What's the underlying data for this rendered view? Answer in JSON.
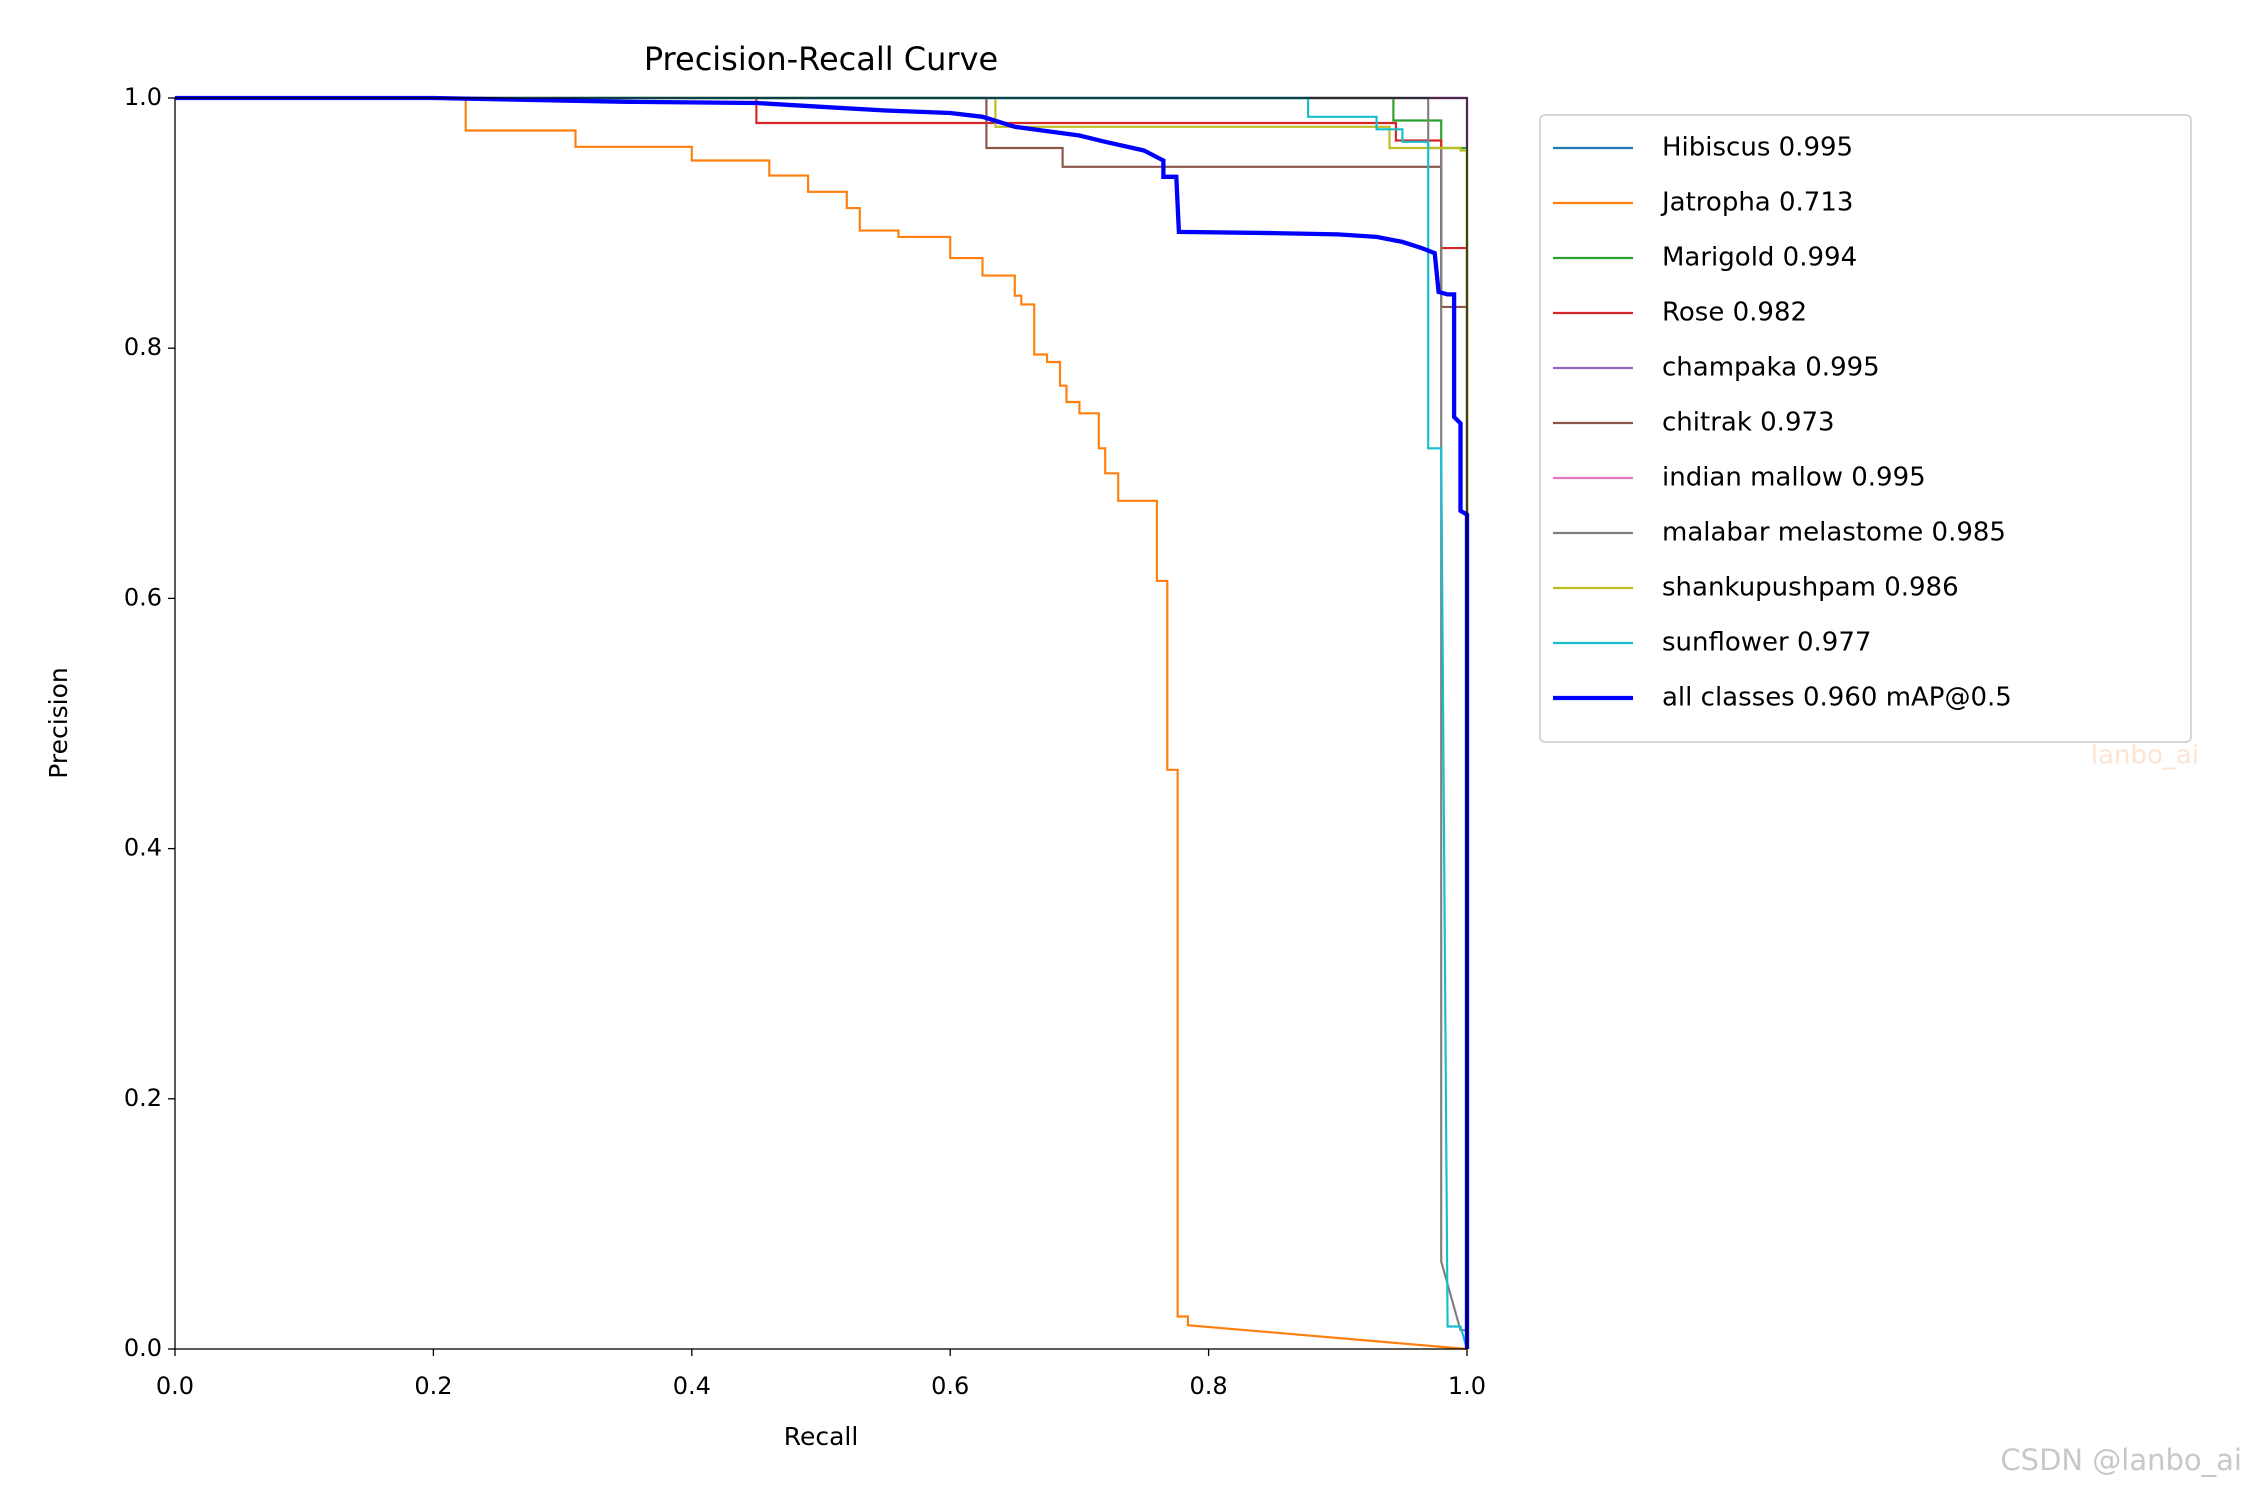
{
  "chart_data": {
    "type": "line",
    "title": "Precision-Recall Curve",
    "xlabel": "Recall",
    "ylabel": "Precision",
    "xlim": [
      0,
      1
    ],
    "ylim": [
      0,
      1
    ],
    "xticks": [
      {
        "value": 0,
        "label": "0.0"
      },
      0.2,
      0.4,
      0.6,
      0.8,
      {
        "value": 1,
        "label": "1.0"
      }
    ],
    "yticks": [
      {
        "value": 0,
        "label": "0.0"
      },
      0.2,
      0.4,
      0.6,
      0.8,
      {
        "value": 1,
        "label": "1.0"
      }
    ],
    "legend": "outside upper right",
    "annotations": [
      "lanbo_ai",
      "CSDN @lanbo_ai"
    ],
    "series": [
      {
        "name": "Hibiscus 0.995",
        "color": "#1f77b4",
        "width": 1.5,
        "x": [
          0,
          1,
          1
        ],
        "values": [
          1,
          1,
          0
        ]
      },
      {
        "name": "Jatropha 0.713",
        "color": "#ff7f0e",
        "width": 1.5,
        "x": [
          0,
          0.225,
          0.225,
          0.31,
          0.31,
          0.4,
          0.4,
          0.46,
          0.46,
          0.49,
          0.49,
          0.52,
          0.52,
          0.53,
          0.53,
          0.56,
          0.56,
          0.6,
          0.6,
          0.625,
          0.625,
          0.65,
          0.65,
          0.655,
          0.655,
          0.665,
          0.665,
          0.675,
          0.675,
          0.685,
          0.685,
          0.69,
          0.69,
          0.7,
          0.7,
          0.715,
          0.715,
          0.72,
          0.72,
          0.73,
          0.73,
          0.76,
          0.76,
          0.768,
          0.768,
          0.776,
          0.776,
          0.784,
          0.784,
          1
        ],
        "values": [
          1,
          1,
          0.974,
          0.974,
          0.961,
          0.961,
          0.95,
          0.95,
          0.938,
          0.938,
          0.925,
          0.925,
          0.912,
          0.912,
          0.894,
          0.894,
          0.889,
          0.889,
          0.872,
          0.872,
          0.858,
          0.858,
          0.842,
          0.842,
          0.835,
          0.835,
          0.795,
          0.795,
          0.789,
          0.789,
          0.77,
          0.77,
          0.757,
          0.757,
          0.748,
          0.748,
          0.72,
          0.72,
          0.7,
          0.7,
          0.678,
          0.678,
          0.614,
          0.614,
          0.463,
          0.463,
          0.026,
          0.026,
          0.019,
          0
        ]
      },
      {
        "name": "Marigold 0.994",
        "color": "#2ca02c",
        "width": 1.5,
        "x": [
          0,
          0.943,
          0.943,
          0.98,
          0.98,
          1,
          1
        ],
        "values": [
          1,
          1,
          0.982,
          0.982,
          0.96,
          0.96,
          0
        ]
      },
      {
        "name": "Rose 0.982",
        "color": "#d62728",
        "width": 1.5,
        "x": [
          0,
          0.45,
          0.45,
          0.945,
          0.945,
          0.98,
          0.98,
          0.98,
          1,
          1
        ],
        "values": [
          1,
          1,
          0.98,
          0.98,
          0.966,
          0.966,
          0.944,
          0.88,
          0.88,
          0
        ]
      },
      {
        "name": "champaka 0.995",
        "color": "#9467bd",
        "width": 1.5,
        "x": [
          0,
          1,
          1
        ],
        "values": [
          1,
          1,
          0
        ]
      },
      {
        "name": "chitrak 0.973",
        "color": "#8c564b",
        "width": 1.5,
        "x": [
          0,
          0.628,
          0.628,
          0.687,
          0.687,
          0.98,
          0.98,
          1,
          1
        ],
        "values": [
          1,
          1,
          0.96,
          0.96,
          0.945,
          0.945,
          0.833,
          0.833,
          0
        ]
      },
      {
        "name": "indian mallow 0.995",
        "color": "#e377c2",
        "width": 1.5,
        "x": [
          0,
          1,
          1
        ],
        "values": [
          1,
          1,
          0
        ]
      },
      {
        "name": "malabar melastome 0.985",
        "color": "#7f7f7f",
        "width": 1.5,
        "x": [
          0,
          0.97,
          0.97,
          0.98,
          0.98,
          0.995,
          1
        ],
        "values": [
          1,
          1,
          0.96,
          0.96,
          0.07,
          0.015,
          0.015
        ]
      },
      {
        "name": "shankupushpam 0.986",
        "color": "#bcbd22",
        "width": 1.5,
        "x": [
          0,
          0.635,
          0.635,
          0.94,
          0.94,
          0.995,
          0.995,
          1,
          1
        ],
        "values": [
          1,
          1,
          0.977,
          0.977,
          0.96,
          0.96,
          0.958,
          0.958,
          0.67
        ]
      },
      {
        "name": "sunflower 0.977",
        "color": "#17becf",
        "width": 1.5,
        "x": [
          0,
          0.877,
          0.877,
          0.93,
          0.93,
          0.95,
          0.95,
          0.97,
          0.97,
          0.97,
          0.98,
          0.985,
          0.995,
          1
        ],
        "values": [
          1,
          1,
          0.985,
          0.985,
          0.975,
          0.975,
          0.965,
          0.965,
          0.95,
          0.72,
          0.72,
          0.018,
          0.018,
          0
        ]
      },
      {
        "name": "all classes 0.960 mAP@0.5",
        "color": "#0000ff",
        "width": 3,
        "x": [
          0,
          0.2,
          0.35,
          0.45,
          0.5,
          0.55,
          0.6,
          0.625,
          0.65,
          0.7,
          0.72,
          0.75,
          0.765,
          0.765,
          0.775,
          0.777,
          0.85,
          0.9,
          0.93,
          0.95,
          0.965,
          0.975,
          0.978,
          0.985,
          0.99,
          0.99,
          0.995,
          0.995,
          1,
          1
        ],
        "values": [
          1,
          1,
          0.997,
          0.996,
          0.993,
          0.99,
          0.988,
          0.985,
          0.977,
          0.97,
          0.965,
          0.958,
          0.95,
          0.937,
          0.937,
          0.893,
          0.892,
          0.891,
          0.889,
          0.885,
          0.88,
          0.876,
          0.845,
          0.843,
          0.843,
          0.745,
          0.74,
          0.67,
          0.667,
          0
        ]
      }
    ]
  }
}
